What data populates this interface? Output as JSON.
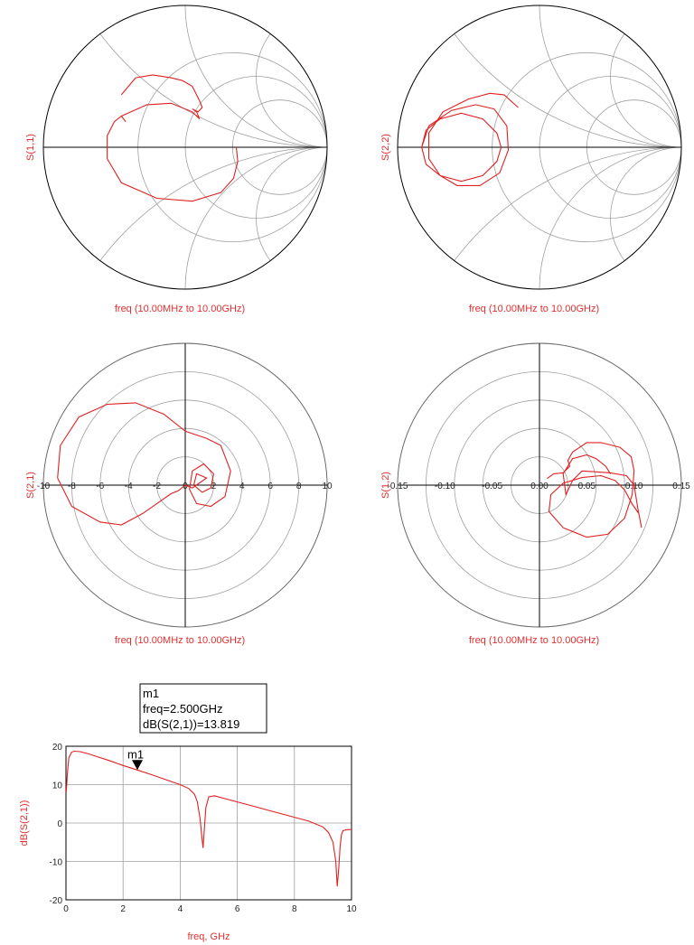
{
  "colors": {
    "trace": "#e02020",
    "grid": "#a0a0a0",
    "axis": "#000000",
    "label": "#e03030"
  },
  "chart_data": [
    {
      "type": "smith",
      "ylabel": "S(1,1)",
      "xlabel": "freq (10.00MHz to 10.00GHz)",
      "trace": [
        [
          -0.45,
          0.37
        ],
        [
          -0.35,
          0.49
        ],
        [
          -0.23,
          0.51
        ],
        [
          -0.1,
          0.49
        ],
        [
          -0.02,
          0.47
        ],
        [
          0.05,
          0.43
        ],
        [
          0.1,
          0.33
        ],
        [
          0.12,
          0.28
        ],
        [
          0.09,
          0.25
        ],
        [
          0.05,
          0.27
        ],
        [
          0.08,
          0.25
        ],
        [
          0.1,
          0.2
        ],
        [
          0.05,
          0.25
        ],
        [
          -0.1,
          0.31
        ],
        [
          -0.27,
          0.3
        ],
        [
          -0.45,
          0.22
        ],
        [
          -0.42,
          0.18
        ],
        [
          -0.45,
          0.22
        ],
        [
          -0.5,
          0.18
        ],
        [
          -0.55,
          0.08
        ],
        [
          -0.55,
          -0.08
        ],
        [
          -0.45,
          -0.25
        ],
        [
          -0.2,
          -0.36
        ],
        [
          0.05,
          -0.38
        ],
        [
          0.25,
          -0.32
        ],
        [
          0.34,
          -0.22
        ],
        [
          0.37,
          -0.1
        ],
        [
          0.36,
          0.0
        ]
      ]
    },
    {
      "type": "smith",
      "ylabel": "S(2,2)",
      "xlabel": "freq (10.00MHz to 10.00GHz)",
      "trace": [
        [
          -0.83,
          0.0
        ],
        [
          -0.8,
          0.12
        ],
        [
          -0.7,
          0.2
        ],
        [
          -0.55,
          0.24
        ],
        [
          -0.4,
          0.2
        ],
        [
          -0.3,
          0.1
        ],
        [
          -0.27,
          0.0
        ],
        [
          -0.3,
          -0.1
        ],
        [
          -0.4,
          -0.2
        ],
        [
          -0.55,
          -0.24
        ],
        [
          -0.7,
          -0.2
        ],
        [
          -0.8,
          -0.12
        ],
        [
          -0.83,
          0.0
        ],
        [
          -0.78,
          0.15
        ],
        [
          -0.62,
          0.26
        ],
        [
          -0.45,
          0.3
        ],
        [
          -0.32,
          0.27
        ],
        [
          -0.23,
          0.15
        ],
        [
          -0.22,
          -0.02
        ],
        [
          -0.28,
          -0.18
        ],
        [
          -0.42,
          -0.27
        ],
        [
          -0.58,
          -0.27
        ],
        [
          -0.7,
          -0.2
        ],
        [
          -0.78,
          -0.08
        ],
        [
          -0.78,
          0.1
        ],
        [
          -0.68,
          0.25
        ],
        [
          -0.5,
          0.34
        ],
        [
          -0.35,
          0.38
        ],
        [
          -0.25,
          0.37
        ],
        [
          -0.15,
          0.28
        ]
      ]
    },
    {
      "type": "polar",
      "ylabel": "S(2,1)",
      "xlabel": "freq (10.00MHz to 10.00GHz)",
      "tick_labels": [
        "-10",
        "-8",
        "-6",
        "-4",
        "-2",
        "0",
        "2",
        "4",
        "6",
        "8",
        "10"
      ],
      "trace": [
        [
          -9,
          0.5
        ],
        [
          -8.8,
          2.8
        ],
        [
          -7.5,
          4.8
        ],
        [
          -5.5,
          5.7
        ],
        [
          -3.5,
          5.8
        ],
        [
          -1.5,
          5.0
        ],
        [
          0,
          3.8
        ],
        [
          1.5,
          3.3
        ],
        [
          2.5,
          2.8
        ],
        [
          3.2,
          1.0
        ],
        [
          2.8,
          -0.8
        ],
        [
          1.8,
          -1.5
        ],
        [
          0.8,
          -1.3
        ],
        [
          0.3,
          -0.3
        ],
        [
          0.5,
          1.0
        ],
        [
          1.3,
          1.5
        ],
        [
          2.0,
          0.8
        ],
        [
          1.8,
          -0.2
        ],
        [
          1.2,
          -0.5
        ],
        [
          0.6,
          0.0
        ],
        [
          0.8,
          0.8
        ],
        [
          1.5,
          0.5
        ],
        [
          0.5,
          -0.2
        ],
        [
          0,
          0
        ],
        [
          -0.5,
          -0.4
        ],
        [
          -1,
          -0.6
        ],
        [
          -2.0,
          -1.3
        ],
        [
          -3.0,
          -2.0
        ],
        [
          -4.5,
          -2.8
        ],
        [
          -6.0,
          -2.6
        ],
        [
          -8.0,
          -1.5
        ],
        [
          -9,
          0.5
        ]
      ]
    },
    {
      "type": "polar",
      "ylabel": "S(1,2)",
      "xlabel": "freq (10.00MHz to 10.00GHz)",
      "tick_labels": [
        "-0.15",
        "-0.10",
        "-0.05",
        "0.00",
        "0.05",
        "0.10",
        "0.15"
      ],
      "trace": [
        [
          0.008,
          0.007
        ],
        [
          0.015,
          0.012
        ],
        [
          0.025,
          0.013
        ],
        [
          0.03,
          0.018
        ],
        [
          0.032,
          0.02
        ],
        [
          0.03,
          0.026
        ],
        [
          0.035,
          0.035
        ],
        [
          0.05,
          0.045
        ],
        [
          0.065,
          0.045
        ],
        [
          0.085,
          0.04
        ],
        [
          0.097,
          0.03
        ],
        [
          0.1,
          0.015
        ],
        [
          0.098,
          -0.01
        ],
        [
          0.09,
          -0.035
        ],
        [
          0.072,
          -0.052
        ],
        [
          0.05,
          -0.055
        ],
        [
          0.025,
          -0.045
        ],
        [
          0.01,
          -0.028
        ],
        [
          0.012,
          -0.01
        ],
        [
          0.025,
          0.002
        ],
        [
          0.045,
          0.008
        ],
        [
          0.065,
          0.01
        ],
        [
          0.08,
          0.005
        ],
        [
          0.09,
          -0.005
        ],
        [
          0.098,
          -0.02
        ],
        [
          0.105,
          -0.03
        ],
        [
          0.108,
          -0.045
        ],
        [
          0.104,
          -0.025
        ],
        [
          0.1,
          0.0
        ],
        [
          0.092,
          0.01
        ],
        [
          0.075,
          0.013
        ],
        [
          0.06,
          0.014
        ],
        [
          0.045,
          0.015
        ],
        [
          0.035,
          0.005
        ],
        [
          0.028,
          -0.01
        ],
        [
          0.025,
          0.012
        ],
        [
          0.035,
          0.028
        ],
        [
          0.05,
          0.032
        ],
        [
          0.06,
          0.028
        ],
        [
          0.07,
          0.02
        ],
        [
          0.075,
          0.012
        ]
      ]
    },
    {
      "type": "line",
      "xlabel": "freq, GHz",
      "ylabel": "dB(S(2,1))",
      "xlim": [
        0,
        10
      ],
      "ylim": [
        -20,
        20
      ],
      "xticks": [
        "0",
        "2",
        "4",
        "6",
        "8",
        "10"
      ],
      "yticks": [
        "20",
        "10",
        "0",
        "-10",
        "-20"
      ],
      "x": [
        0.01,
        0.05,
        0.1,
        0.2,
        0.3,
        0.5,
        0.8,
        1.0,
        1.5,
        2.0,
        2.5,
        3.0,
        3.5,
        4.0,
        4.3,
        4.5,
        4.6,
        4.7,
        4.75,
        4.8,
        4.85,
        4.9,
        5.0,
        5.2,
        5.5,
        6.0,
        6.5,
        7.0,
        7.5,
        8.0,
        8.5,
        9.0,
        9.2,
        9.35,
        9.45,
        9.5,
        9.55,
        9.6,
        9.65,
        9.7,
        9.8,
        9.9,
        10.0
      ],
      "y": [
        8,
        13,
        17,
        18.5,
        18.7,
        18.6,
        18,
        17.5,
        16.3,
        15,
        13.819,
        12.6,
        11.3,
        10,
        9,
        7.5,
        5.5,
        1,
        -3,
        -6.5,
        -1,
        4,
        6.8,
        7.1,
        6.5,
        5.5,
        4.5,
        3.5,
        2.5,
        1.5,
        0.5,
        -1,
        -2.5,
        -5,
        -10,
        -16.5,
        -12,
        -6,
        -3,
        -2,
        -1.8,
        -1.7,
        -1.7
      ],
      "marker": {
        "name": "m1",
        "freq": 2.5,
        "value": 13.819,
        "lines": [
          "m1",
          "freq=2.500GHz",
          "dB(S(2,1))=13.819"
        ]
      }
    }
  ]
}
